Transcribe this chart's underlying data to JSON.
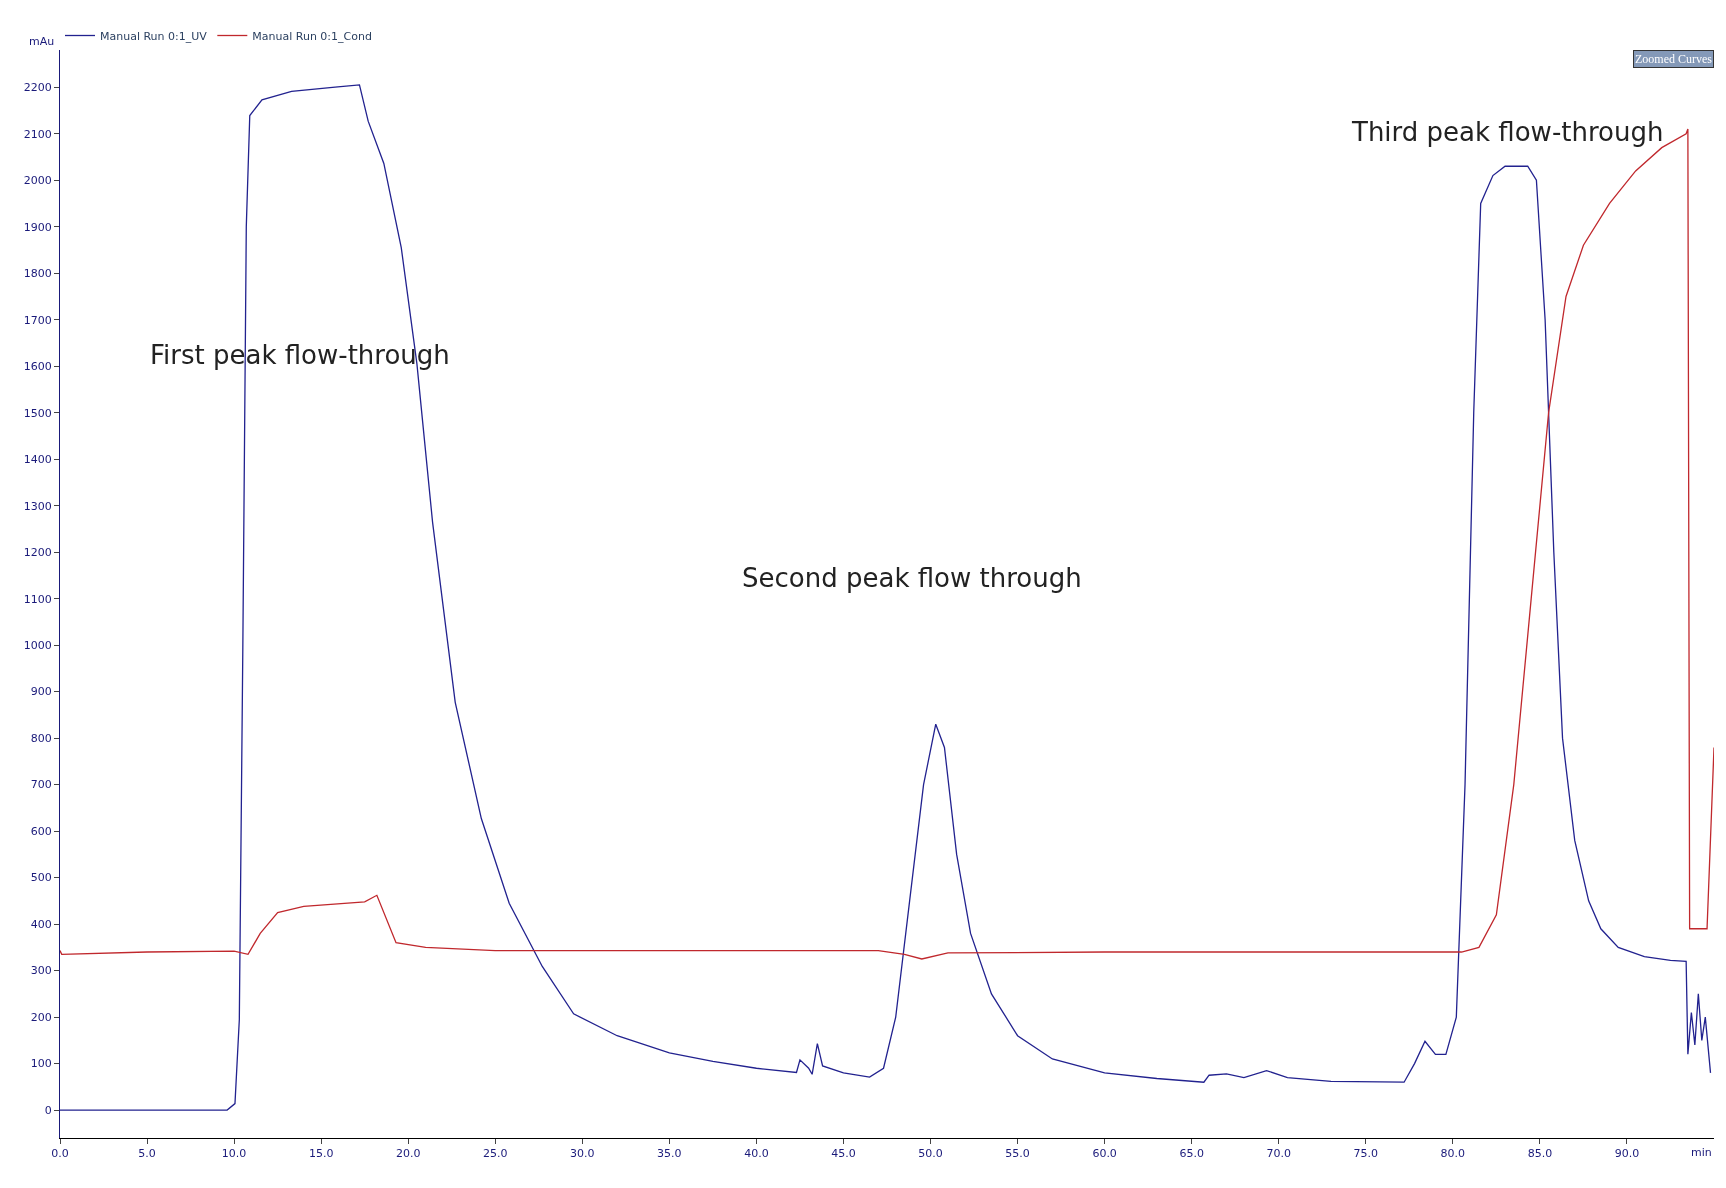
{
  "chart_data": {
    "type": "line",
    "xlabel": "min",
    "ylabel": "mAu",
    "xlim": [
      0,
      95
    ],
    "ylim": [
      -60,
      2280
    ],
    "xticks": [
      {
        "value": 0,
        "label": "0.0"
      },
      {
        "value": 5,
        "label": "5.0"
      },
      {
        "value": 10,
        "label": "10.0"
      },
      {
        "value": 15,
        "label": "15.0"
      },
      {
        "value": 20,
        "label": "20.0"
      },
      {
        "value": 25,
        "label": "25.0"
      },
      {
        "value": 30,
        "label": "30.0"
      },
      {
        "value": 35,
        "label": "35.0"
      },
      {
        "value": 40,
        "label": "40.0"
      },
      {
        "value": 45,
        "label": "45.0"
      },
      {
        "value": 50,
        "label": "50.0"
      },
      {
        "value": 55,
        "label": "55.0"
      },
      {
        "value": 60,
        "label": "60.0"
      },
      {
        "value": 65,
        "label": "65.0"
      },
      {
        "value": 70,
        "label": "70.0"
      },
      {
        "value": 75,
        "label": "75.0"
      },
      {
        "value": 80,
        "label": "80.0"
      },
      {
        "value": 85,
        "label": "85.0"
      },
      {
        "value": 90,
        "label": "90.0"
      }
    ],
    "yticks": [
      0,
      100,
      200,
      300,
      400,
      500,
      600,
      700,
      800,
      900,
      1000,
      1100,
      1200,
      1300,
      1400,
      1500,
      1600,
      1700,
      1800,
      1900,
      2000,
      2100,
      2200
    ],
    "legend": "top left",
    "marker": "none",
    "line_style": "solid",
    "annotations": [
      "First peak flow-through",
      "Second peak flow through",
      "Third peak flow-through",
      "Zoomed Curves"
    ],
    "series": [
      {
        "name": "Manual Run 0:1_UV",
        "color": "#22228f",
        "x": [
          0,
          9.6,
          10.05,
          10.3,
          10.5,
          10.7,
          10.9,
          11.6,
          13.3,
          15.8,
          17.2,
          17.7,
          18.6,
          19.6,
          20.5,
          21.4,
          22.7,
          24.2,
          25.8,
          27.7,
          29.5,
          32,
          35,
          37.5,
          40,
          42.3,
          42.5,
          43,
          43.2,
          43.5,
          43.8,
          45,
          46.5,
          47.3,
          48,
          48.8,
          49.6,
          50.3,
          50.8,
          51.5,
          52.3,
          53.5,
          55,
          57,
          60,
          63,
          65.7,
          66,
          67,
          68,
          69.3,
          70.5,
          73,
          77.2,
          77.8,
          78.4,
          79,
          79.6,
          80.2,
          80.7,
          81.2,
          81.6,
          82.3,
          83,
          84.3,
          84.8,
          85.3,
          85.8,
          86.3,
          87,
          87.8,
          88.5,
          89.5,
          91,
          92.5,
          93.4,
          93.5,
          93.7,
          93.9,
          94.1,
          94.3,
          94.5,
          94.8
        ],
        "values": [
          0,
          0,
          14,
          195,
          990,
          1900,
          2139,
          2173,
          2191,
          2200,
          2205,
          2127,
          2036,
          1855,
          1605,
          1264,
          877,
          627,
          445,
          309,
          207,
          160,
          123,
          105,
          90,
          81,
          108,
          90,
          77,
          143,
          95,
          80,
          71,
          90,
          200,
          450,
          700,
          830,
          780,
          550,
          380,
          250,
          160,
          110,
          80,
          68,
          60,
          75,
          78,
          70,
          85,
          70,
          62,
          60,
          100,
          148,
          120,
          120,
          200,
          700,
          1500,
          1950,
          2010,
          2030,
          2030,
          2000,
          1700,
          1200,
          800,
          580,
          450,
          390,
          350,
          330,
          322,
          320,
          120,
          210,
          140,
          250,
          150,
          200,
          80
        ]
      },
      {
        "name": "Manual Run 0:1_Cond",
        "color": "#c0282d",
        "x": [
          0,
          0.1,
          5,
          10,
          10.8,
          11.5,
          12.5,
          14,
          17.5,
          18.2,
          19.3,
          21,
          25,
          47,
          48.5,
          49.5,
          51,
          60,
          80.5,
          81.5,
          82.5,
          83.5,
          84.5,
          85.5,
          86.5,
          87.5,
          89,
          90.5,
          92,
          93.4,
          93.5,
          93.6,
          94.6,
          95
        ],
        "values": [
          343,
          335,
          340,
          342,
          335,
          380,
          425,
          438,
          448,
          462,
          360,
          350,
          343,
          343,
          335,
          325,
          338,
          340,
          340,
          350,
          420,
          700,
          1100,
          1500,
          1750,
          1860,
          1950,
          2020,
          2070,
          2100,
          2110,
          390,
          390,
          780
        ]
      }
    ]
  }
}
